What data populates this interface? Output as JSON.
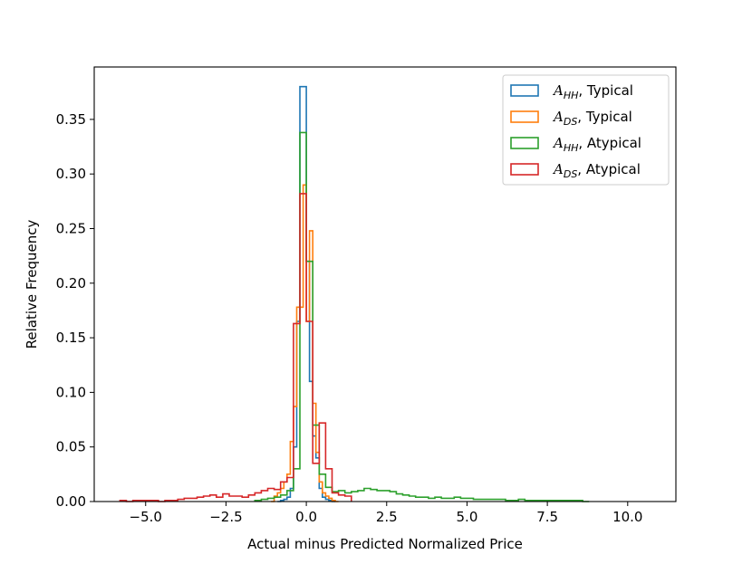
{
  "chart_data": {
    "type": "histogram",
    "title": "",
    "xlabel": "Actual  minus Predicted Normalized Price",
    "ylabel": "Relative Frequency",
    "xlim": [
      -6.6,
      11.5
    ],
    "ylim": [
      0.0,
      0.398
    ],
    "xticks": [
      -5.0,
      -2.5,
      0.0,
      2.5,
      5.0,
      7.5,
      10.0
    ],
    "xtick_labels": [
      "−5.0",
      "−2.5",
      "0.0",
      "2.5",
      "5.0",
      "7.5",
      "10.0"
    ],
    "yticks": [
      0.0,
      0.05,
      0.1,
      0.15,
      0.2,
      0.25,
      0.3,
      0.35
    ],
    "ytick_labels": [
      "0.00",
      "0.05",
      "0.10",
      "0.15",
      "0.20",
      "0.25",
      "0.30",
      "0.35"
    ],
    "grid": false,
    "legend_position": "top-right",
    "series": [
      {
        "name": "AHH, Typical",
        "legend_letter": "A",
        "legend_sub": "HH",
        "legend_suffix": ", Typical",
        "color": "#1f77b4",
        "edges": [
          -0.9,
          -0.8,
          -0.7,
          -0.6,
          -0.5,
          -0.4,
          -0.3,
          -0.2,
          -0.1,
          0.0,
          0.1,
          0.2,
          0.3,
          0.4,
          0.5,
          0.6,
          0.7,
          0.8,
          0.9
        ],
        "values": [
          0.0,
          0.001,
          0.002,
          0.004,
          0.012,
          0.05,
          0.165,
          0.38,
          0.38,
          0.22,
          0.11,
          0.06,
          0.04,
          0.012,
          0.004,
          0.002,
          0.001,
          0.0
        ]
      },
      {
        "name": "ADS, Typical",
        "legend_letter": "A",
        "legend_sub": "DS",
        "legend_suffix": ", Typical",
        "color": "#ff7f0e",
        "edges": [
          -1.1,
          -1.0,
          -0.9,
          -0.8,
          -0.7,
          -0.6,
          -0.5,
          -0.4,
          -0.3,
          -0.2,
          -0.1,
          0.0,
          0.1,
          0.2,
          0.3,
          0.4,
          0.5,
          0.6,
          0.7,
          0.8,
          0.9,
          1.0
        ],
        "values": [
          0.0,
          0.005,
          0.008,
          0.012,
          0.018,
          0.025,
          0.055,
          0.087,
          0.178,
          0.178,
          0.29,
          0.165,
          0.248,
          0.09,
          0.045,
          0.018,
          0.008,
          0.005,
          0.003,
          0.001,
          0.0
        ]
      },
      {
        "name": "AHH, Atypical",
        "legend_letter": "A",
        "legend_sub": "HH",
        "legend_suffix": ", Atypical",
        "color": "#2ca02c",
        "edges": [
          -1.6,
          -1.4,
          -1.2,
          -1.0,
          -0.8,
          -0.6,
          -0.4,
          -0.2,
          0.0,
          0.2,
          0.4,
          0.6,
          0.8,
          1.0,
          1.2,
          1.4,
          1.6,
          1.8,
          2.0,
          2.2,
          2.4,
          2.6,
          2.8,
          3.0,
          3.2,
          3.4,
          3.6,
          3.8,
          4.0,
          4.2,
          4.4,
          4.6,
          4.8,
          5.0,
          5.2,
          5.4,
          5.6,
          5.8,
          6.0,
          6.2,
          6.4,
          6.6,
          6.8,
          7.0,
          7.2,
          7.4,
          7.6,
          7.8,
          8.0,
          8.2,
          8.4,
          8.6,
          8.8
        ],
        "values": [
          0.001,
          0.002,
          0.003,
          0.004,
          0.006,
          0.01,
          0.03,
          0.338,
          0.22,
          0.07,
          0.025,
          0.013,
          0.009,
          0.01,
          0.008,
          0.009,
          0.01,
          0.012,
          0.011,
          0.01,
          0.01,
          0.009,
          0.007,
          0.006,
          0.005,
          0.004,
          0.004,
          0.003,
          0.004,
          0.003,
          0.003,
          0.004,
          0.003,
          0.003,
          0.002,
          0.002,
          0.002,
          0.002,
          0.002,
          0.001,
          0.001,
          0.002,
          0.001,
          0.001,
          0.001,
          0.001,
          0.001,
          0.001,
          0.001,
          0.001,
          0.001,
          0.0
        ]
      },
      {
        "name": "ADS, Atypical",
        "legend_letter": "A",
        "legend_sub": "DS",
        "legend_suffix": ", Atypical",
        "color": "#d62728",
        "edges": [
          -5.8,
          -5.6,
          -5.4,
          -5.2,
          -5.0,
          -4.8,
          -4.6,
          -4.4,
          -4.2,
          -4.0,
          -3.8,
          -3.6,
          -3.4,
          -3.2,
          -3.0,
          -2.8,
          -2.6,
          -2.4,
          -2.2,
          -2.0,
          -1.8,
          -1.6,
          -1.4,
          -1.2,
          -1.0,
          -0.8,
          -0.6,
          -0.4,
          -0.2,
          0.0,
          0.2,
          0.4,
          0.6,
          0.8,
          1.0,
          1.2,
          1.4
        ],
        "values": [
          0.001,
          0.0,
          0.001,
          0.001,
          0.001,
          0.001,
          0.0,
          0.001,
          0.001,
          0.002,
          0.003,
          0.003,
          0.004,
          0.005,
          0.006,
          0.004,
          0.007,
          0.005,
          0.005,
          0.004,
          0.006,
          0.008,
          0.01,
          0.012,
          0.011,
          0.018,
          0.022,
          0.163,
          0.282,
          0.165,
          0.035,
          0.072,
          0.03,
          0.008,
          0.006,
          0.005
        ]
      }
    ]
  }
}
